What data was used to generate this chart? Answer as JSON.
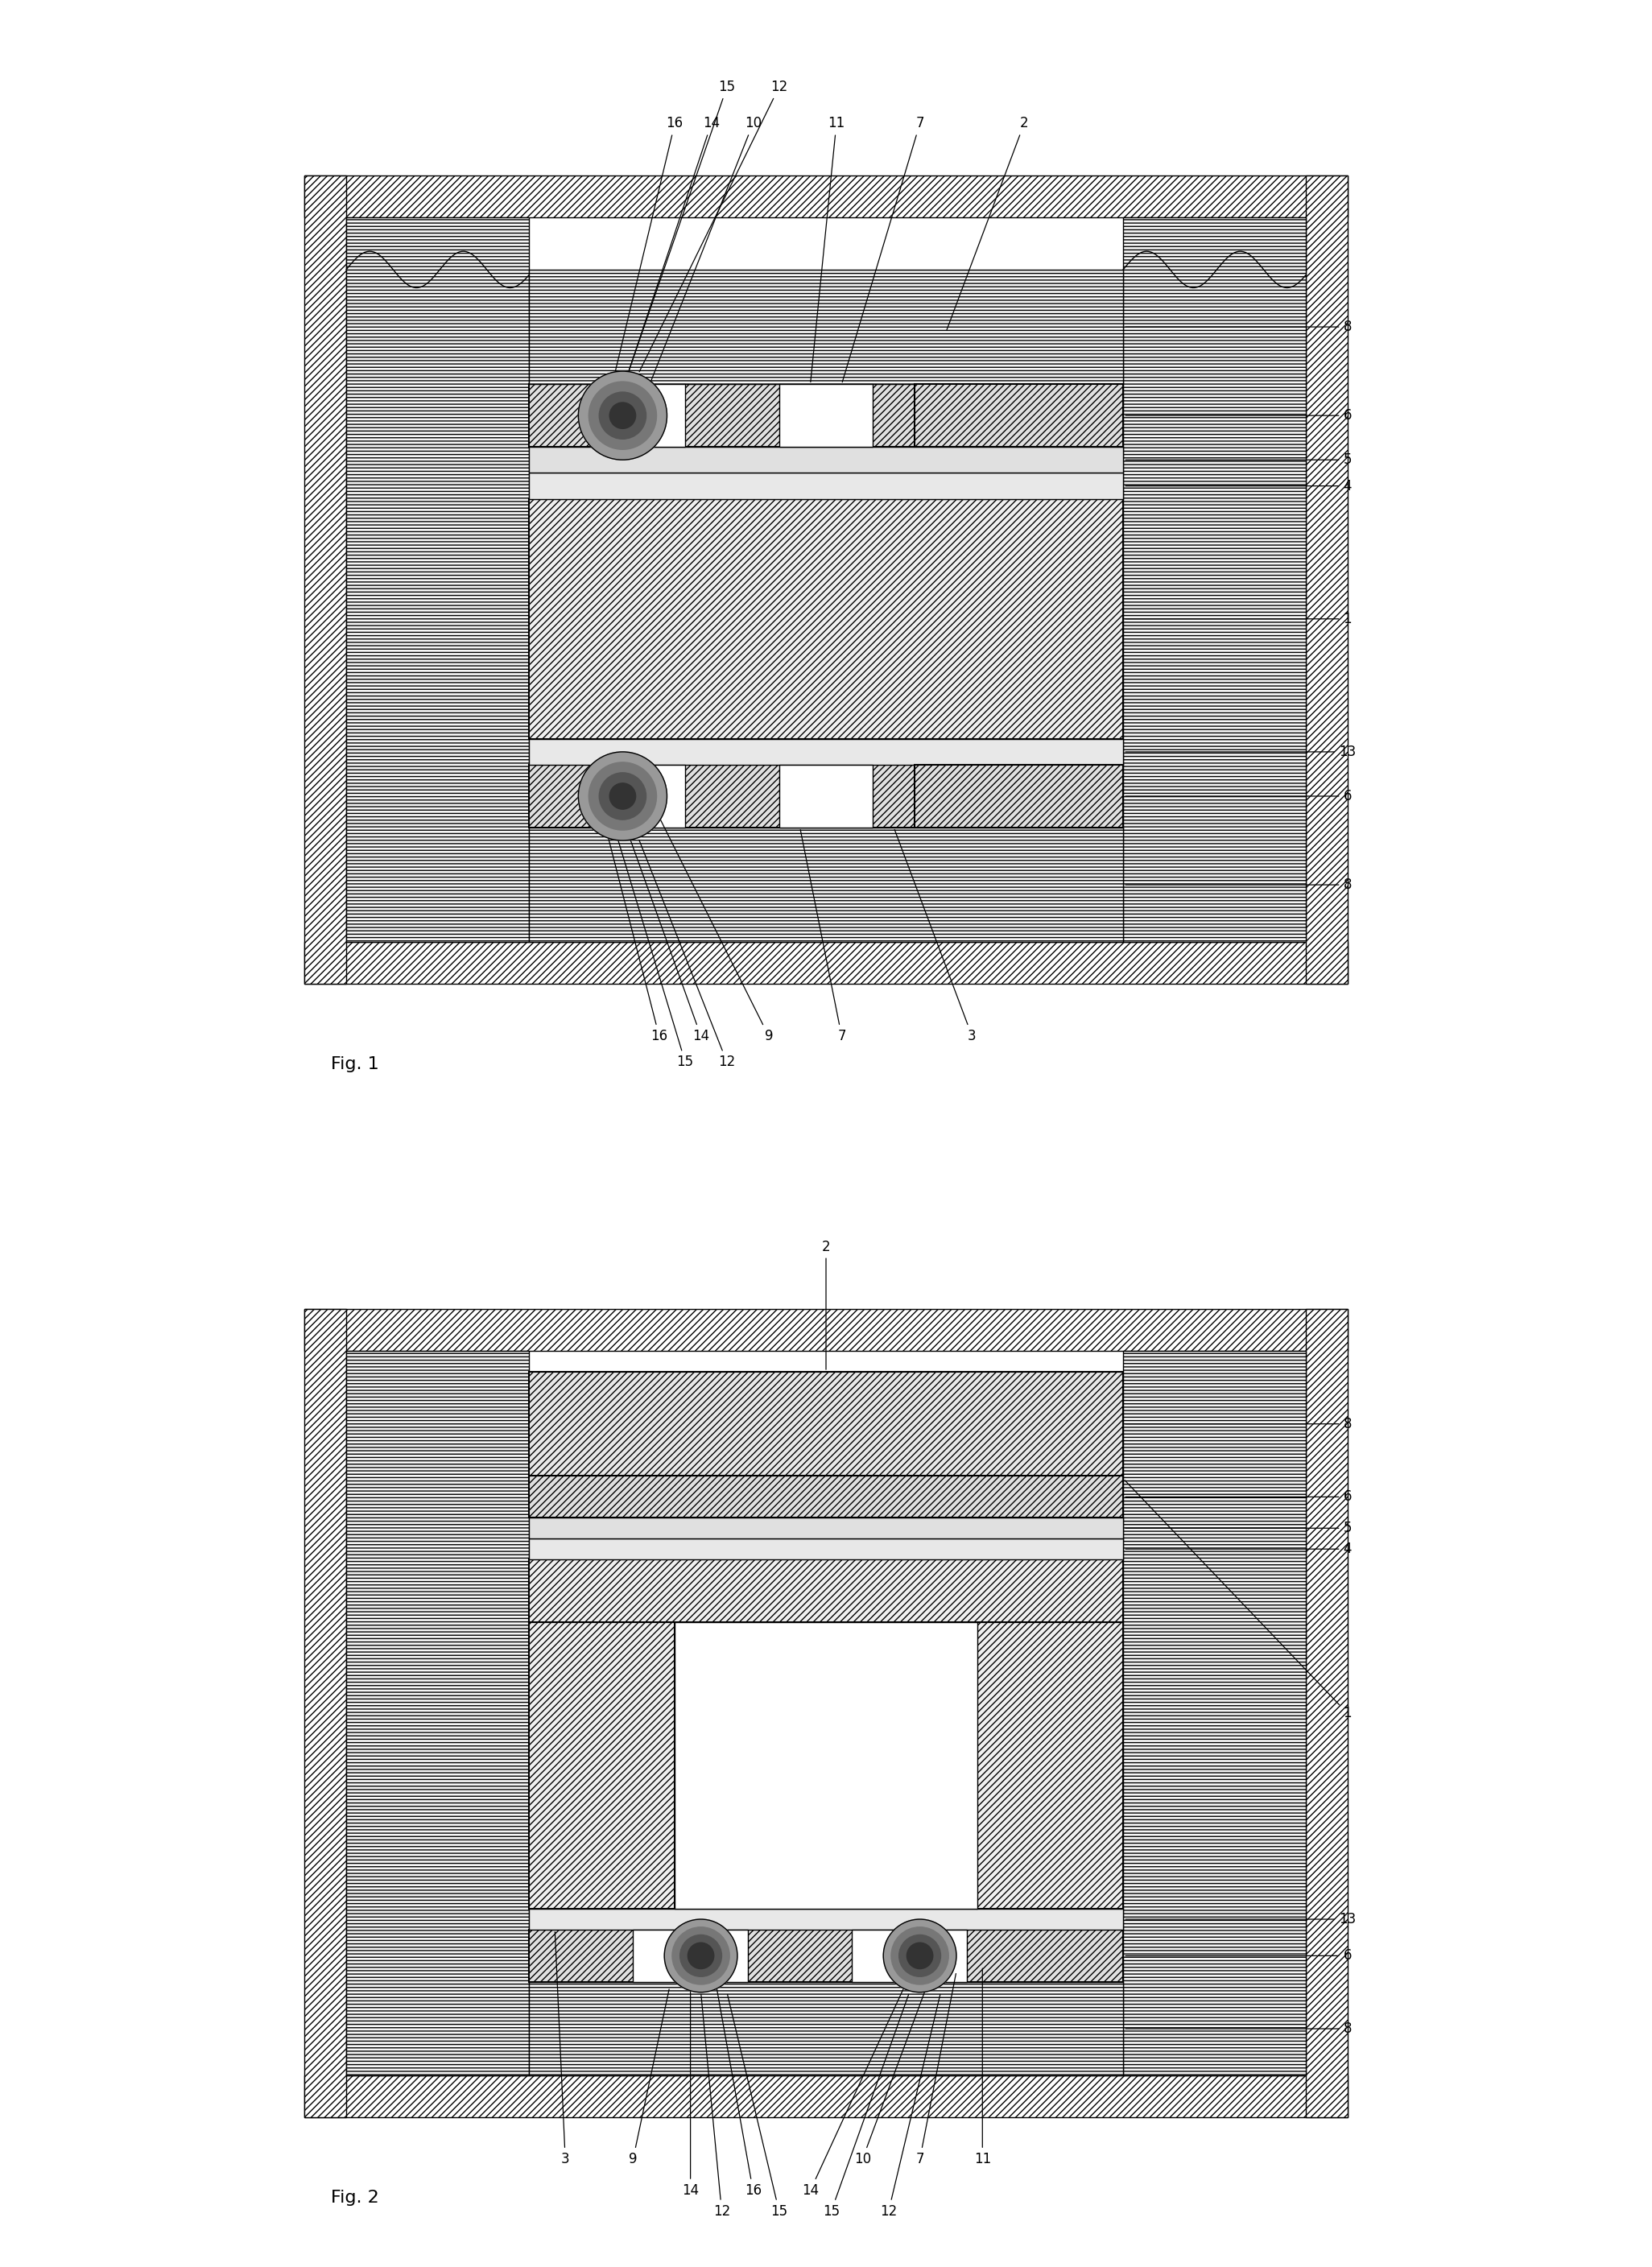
{
  "fig_width": 20.52,
  "fig_height": 28.16,
  "bg_color": "#ffffff",
  "line_color": "#000000",
  "fig1_label": "Fig. 1",
  "fig2_label": "Fig. 2"
}
